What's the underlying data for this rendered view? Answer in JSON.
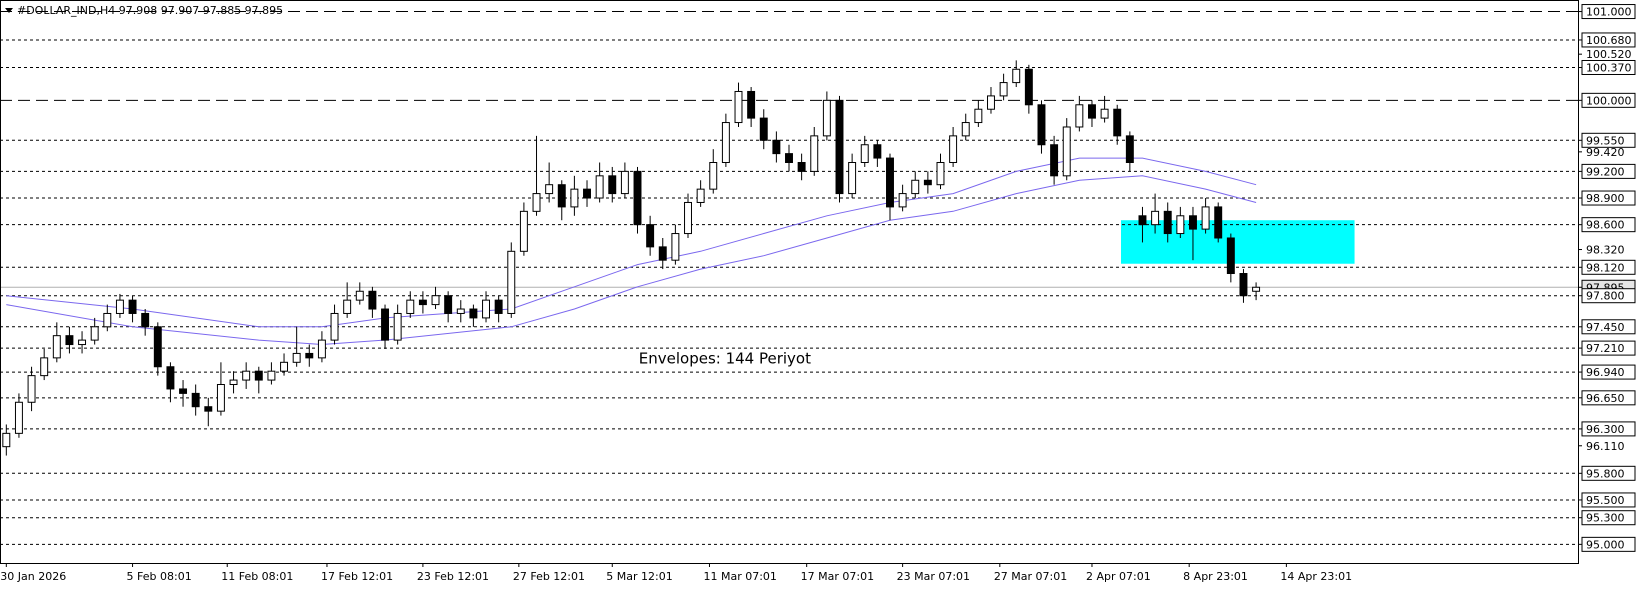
{
  "chart_data": {
    "type": "candlestick",
    "title": "#DOLLAR_IND,H4  97.908 97.907 97.885 97.895",
    "annotation": {
      "text": "Envelopes: 144 Periyot",
      "x": 50.1,
      "y": 97.09,
      "color": "#8b008b"
    },
    "xlim": [
      -0.5,
      124.5
    ],
    "ylim": [
      94.79,
      101.13
    ],
    "xticks": [
      {
        "value": 0,
        "label": "30 Jan 2026"
      },
      {
        "value": 10,
        "label": "5 Feb 08:01"
      },
      {
        "value": 17.5,
        "label": "11 Feb 08:01"
      },
      {
        "value": 25.4,
        "label": "17 Feb 12:01"
      },
      {
        "value": 33,
        "label": "23 Feb 12:01"
      },
      {
        "value": 40.6,
        "label": "27 Feb 12:01"
      },
      {
        "value": 48,
        "label": "5 Mar 12:01"
      },
      {
        "value": 55.7,
        "label": "11 Mar 07:01"
      },
      {
        "value": 63.4,
        "label": "17 Mar 07:01"
      },
      {
        "value": 71,
        "label": "23 Mar 07:01"
      },
      {
        "value": 78.7,
        "label": "27 Mar 07:01"
      },
      {
        "value": 86,
        "label": "2 Apr 07:01"
      },
      {
        "value": 93.7,
        "label": "8 Apr 23:01"
      },
      {
        "value": 101.4,
        "label": "14 Apr 23:01"
      }
    ],
    "yticks": [
      {
        "value": 101.0,
        "label": "101.000",
        "line": "long"
      },
      {
        "value": 100.68,
        "label": "100.680",
        "line": "short"
      },
      {
        "value": 100.52,
        "label": "100.520"
      },
      {
        "value": 100.37,
        "label": "100.370",
        "line": "short"
      },
      {
        "value": 100.0,
        "label": "100.000",
        "line": "long"
      },
      {
        "value": 99.55,
        "label": "99.550",
        "line": "short"
      },
      {
        "value": 99.42,
        "label": "99.420"
      },
      {
        "value": 99.2,
        "label": "99.200",
        "line": "short"
      },
      {
        "value": 98.9,
        "label": "98.900",
        "line": "short"
      },
      {
        "value": 98.6,
        "label": "98.600",
        "line": "short"
      },
      {
        "value": 98.32,
        "label": "98.320"
      },
      {
        "value": 98.12,
        "label": "98.120",
        "line": "short"
      },
      {
        "value": 97.895,
        "label": "97.895",
        "line": "current"
      },
      {
        "value": 97.8,
        "label": "97.800",
        "line": "short"
      },
      {
        "value": 97.45,
        "label": "97.450",
        "line": "short"
      },
      {
        "value": 97.21,
        "label": "97.210",
        "line": "short"
      },
      {
        "value": 96.94,
        "label": "96.940",
        "line": "short"
      },
      {
        "value": 96.65,
        "label": "96.650",
        "line": "short"
      },
      {
        "value": 96.3,
        "label": "96.300",
        "line": "short"
      },
      {
        "value": 96.11,
        "label": "96.110"
      },
      {
        "value": 95.8,
        "label": "95.800",
        "line": "short"
      },
      {
        "value": 95.5,
        "label": "95.500",
        "line": "short"
      },
      {
        "value": 95.3,
        "label": "95.300",
        "line": "short"
      },
      {
        "value": 95.0,
        "label": "95.000",
        "line": "short"
      }
    ],
    "zone": {
      "x": [
        88.3,
        106.8
      ],
      "y": [
        98.16,
        98.65
      ],
      "color": "#00ffff"
    },
    "candles": [
      [
        96.1,
        96.35,
        96.0,
        96.25
      ],
      [
        96.25,
        96.7,
        96.2,
        96.6
      ],
      [
        96.6,
        97.0,
        96.5,
        96.9
      ],
      [
        96.9,
        97.2,
        96.85,
        97.1
      ],
      [
        97.1,
        97.5,
        97.05,
        97.35
      ],
      [
        97.35,
        97.45,
        97.15,
        97.25
      ],
      [
        97.25,
        97.4,
        97.15,
        97.3
      ],
      [
        97.3,
        97.55,
        97.25,
        97.45
      ],
      [
        97.45,
        97.7,
        97.4,
        97.6
      ],
      [
        97.6,
        97.82,
        97.55,
        97.75
      ],
      [
        97.75,
        97.8,
        97.5,
        97.6
      ],
      [
        97.6,
        97.65,
        97.35,
        97.45
      ],
      [
        97.45,
        97.5,
        96.9,
        97.0
      ],
      [
        97.0,
        97.05,
        96.6,
        96.75
      ],
      [
        96.75,
        96.85,
        96.55,
        96.7
      ],
      [
        96.7,
        96.8,
        96.45,
        96.55
      ],
      [
        96.55,
        96.65,
        96.33,
        96.5
      ],
      [
        96.5,
        97.05,
        96.45,
        96.8
      ],
      [
        96.8,
        96.95,
        96.7,
        96.85
      ],
      [
        96.85,
        97.05,
        96.75,
        96.95
      ],
      [
        96.95,
        97.0,
        96.7,
        96.85
      ],
      [
        96.85,
        97.05,
        96.8,
        96.95
      ],
      [
        96.95,
        97.15,
        96.9,
        97.05
      ],
      [
        97.05,
        97.45,
        97.0,
        97.15
      ],
      [
        97.15,
        97.25,
        97.0,
        97.1
      ],
      [
        97.1,
        97.4,
        97.05,
        97.3
      ],
      [
        97.3,
        97.7,
        97.25,
        97.6
      ],
      [
        97.6,
        97.95,
        97.55,
        97.75
      ],
      [
        97.75,
        97.95,
        97.7,
        97.85
      ],
      [
        97.85,
        97.9,
        97.55,
        97.65
      ],
      [
        97.65,
        97.7,
        97.2,
        97.3
      ],
      [
        97.3,
        97.7,
        97.25,
        97.6
      ],
      [
        97.6,
        97.85,
        97.55,
        97.75
      ],
      [
        97.75,
        97.85,
        97.6,
        97.7
      ],
      [
        97.7,
        97.9,
        97.65,
        97.8
      ],
      [
        97.8,
        97.85,
        97.5,
        97.6
      ],
      [
        97.6,
        97.75,
        97.5,
        97.65
      ],
      [
        97.65,
        97.7,
        97.45,
        97.55
      ],
      [
        97.55,
        97.85,
        97.5,
        97.75
      ],
      [
        97.75,
        97.8,
        97.5,
        97.6
      ],
      [
        97.6,
        98.4,
        97.55,
        98.3
      ],
      [
        98.3,
        98.85,
        98.25,
        98.75
      ],
      [
        98.75,
        99.6,
        98.7,
        98.95
      ],
      [
        98.95,
        99.3,
        98.85,
        99.05
      ],
      [
        99.05,
        99.1,
        98.65,
        98.8
      ],
      [
        98.8,
        99.15,
        98.7,
        99.0
      ],
      [
        99.0,
        99.1,
        98.8,
        98.9
      ],
      [
        98.9,
        99.3,
        98.85,
        99.15
      ],
      [
        99.15,
        99.25,
        98.85,
        98.95
      ],
      [
        98.95,
        99.3,
        98.9,
        99.2
      ],
      [
        99.2,
        99.25,
        98.5,
        98.6
      ],
      [
        98.6,
        98.7,
        98.25,
        98.35
      ],
      [
        98.35,
        98.45,
        98.1,
        98.2
      ],
      [
        98.2,
        98.6,
        98.15,
        98.5
      ],
      [
        98.5,
        98.95,
        98.45,
        98.85
      ],
      [
        98.85,
        99.1,
        98.8,
        99.0
      ],
      [
        99.0,
        99.45,
        98.95,
        99.3
      ],
      [
        99.3,
        99.85,
        99.25,
        99.75
      ],
      [
        99.75,
        100.2,
        99.7,
        100.1
      ],
      [
        100.1,
        100.15,
        99.7,
        99.8
      ],
      [
        99.8,
        99.9,
        99.45,
        99.55
      ],
      [
        99.55,
        99.65,
        99.3,
        99.4
      ],
      [
        99.4,
        99.5,
        99.2,
        99.3
      ],
      [
        99.3,
        99.4,
        99.1,
        99.2
      ],
      [
        99.2,
        99.7,
        99.15,
        99.6
      ],
      [
        99.6,
        100.1,
        99.55,
        100.0
      ],
      [
        100.0,
        100.05,
        98.85,
        98.95
      ],
      [
        98.95,
        99.4,
        98.9,
        99.3
      ],
      [
        99.3,
        99.6,
        99.25,
        99.5
      ],
      [
        99.5,
        99.55,
        99.25,
        99.35
      ],
      [
        99.35,
        99.4,
        98.65,
        98.8
      ],
      [
        98.8,
        99.05,
        98.75,
        98.95
      ],
      [
        98.95,
        99.2,
        98.9,
        99.1
      ],
      [
        99.1,
        99.2,
        98.95,
        99.05
      ],
      [
        99.05,
        99.4,
        99.0,
        99.3
      ],
      [
        99.3,
        99.7,
        99.25,
        99.6
      ],
      [
        99.6,
        99.85,
        99.55,
        99.75
      ],
      [
        99.75,
        100.0,
        99.7,
        99.9
      ],
      [
        99.9,
        100.15,
        99.85,
        100.05
      ],
      [
        100.05,
        100.3,
        100.0,
        100.2
      ],
      [
        100.2,
        100.45,
        100.15,
        100.35
      ],
      [
        100.35,
        100.4,
        99.85,
        99.95
      ],
      [
        99.95,
        100.0,
        99.4,
        99.5
      ],
      [
        99.5,
        99.6,
        99.05,
        99.15
      ],
      [
        99.15,
        99.8,
        99.1,
        99.7
      ],
      [
        99.7,
        100.05,
        99.65,
        99.95
      ],
      [
        99.95,
        100.0,
        99.7,
        99.8
      ],
      [
        99.8,
        100.05,
        99.75,
        99.9
      ],
      [
        99.9,
        99.95,
        99.5,
        99.6
      ],
      [
        99.6,
        99.65,
        99.2,
        99.3
      ],
      [
        98.7,
        98.8,
        98.4,
        98.6
      ],
      [
        98.6,
        98.95,
        98.5,
        98.75
      ],
      [
        98.75,
        98.85,
        98.4,
        98.5
      ],
      [
        98.5,
        98.8,
        98.45,
        98.7
      ],
      [
        98.7,
        98.8,
        98.2,
        98.55
      ],
      [
        98.55,
        98.9,
        98.5,
        98.8
      ],
      [
        98.8,
        98.85,
        98.4,
        98.45
      ],
      [
        98.45,
        98.5,
        97.95,
        98.05
      ],
      [
        98.05,
        98.1,
        97.72,
        97.8
      ],
      [
        97.85,
        97.95,
        97.75,
        97.895
      ]
    ],
    "series": [
      {
        "color": "#7b68ee",
        "x": [
          0,
          10,
          20,
          25,
          30,
          40,
          45,
          50,
          55,
          60,
          65,
          70,
          75,
          80,
          85,
          90,
          95,
          99
        ],
        "values": [
          97.8,
          97.65,
          97.45,
          97.45,
          97.55,
          97.65,
          97.9,
          98.15,
          98.3,
          98.5,
          98.7,
          98.85,
          98.95,
          99.2,
          99.35,
          99.35,
          99.2,
          99.05
        ]
      },
      {
        "color": "#7b68ee",
        "x": [
          0,
          10,
          20,
          25,
          30,
          40,
          45,
          50,
          55,
          60,
          65,
          70,
          75,
          80,
          85,
          90,
          95,
          99
        ],
        "values": [
          97.7,
          97.45,
          97.3,
          97.25,
          97.3,
          97.45,
          97.65,
          97.9,
          98.1,
          98.25,
          98.45,
          98.65,
          98.75,
          98.95,
          99.1,
          99.15,
          99.0,
          98.85
        ]
      }
    ]
  }
}
